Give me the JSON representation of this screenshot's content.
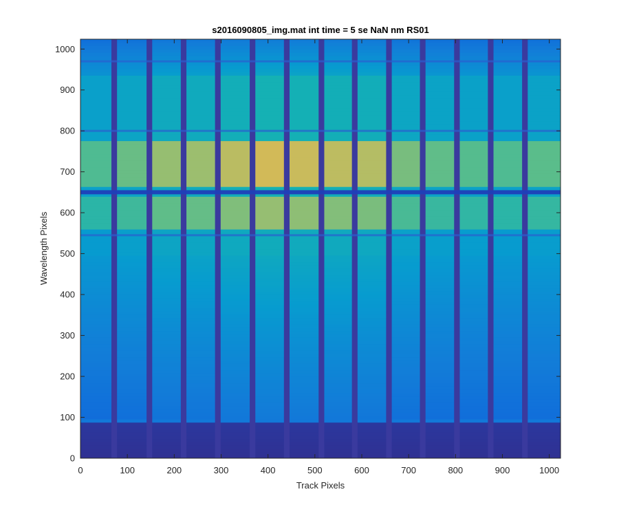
{
  "chart_data": {
    "type": "heatmap",
    "title": "s2016090805_img.mat int time = 5 se  NaN nm RS01",
    "xlabel": "Track Pixels",
    "ylabel": "Wavelength Pixels",
    "xlim": [
      0,
      1024
    ],
    "ylim": [
      0,
      1024
    ],
    "xticks": [
      "0",
      "100",
      "200",
      "300",
      "400",
      "500",
      "600",
      "700",
      "800",
      "900",
      "1000"
    ],
    "yticks": [
      "0",
      "100",
      "200",
      "300",
      "400",
      "500",
      "600",
      "700",
      "800",
      "900",
      "1000"
    ],
    "xtick_values": [
      0,
      100,
      200,
      300,
      400,
      500,
      600,
      700,
      800,
      900,
      1000
    ],
    "ytick_values": [
      0,
      100,
      200,
      300,
      400,
      500,
      600,
      700,
      800,
      900,
      1000
    ],
    "colormap": "parula",
    "grid": false,
    "track_gaps": [
      72,
      147,
      220,
      293,
      367,
      440,
      514,
      585,
      658,
      730,
      803,
      875,
      948
    ],
    "track_gap_width": 12,
    "track_peaks": [
      0.55,
      0.65,
      0.8,
      0.82,
      0.92,
      1.0,
      0.97,
      0.93,
      0.9,
      0.7,
      0.62,
      0.58,
      0.55,
      0.6
    ],
    "dark_band_rows": [
      650,
      545,
      800,
      970
    ],
    "bright_band_range": [
      560,
      780
    ],
    "low_signal_cutoff": 90
  }
}
